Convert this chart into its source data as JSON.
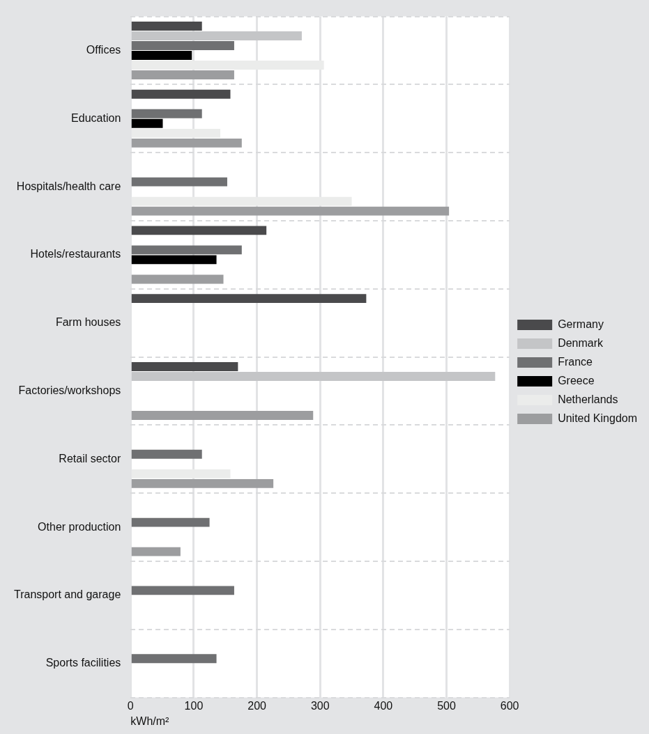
{
  "chart_data": {
    "type": "bar",
    "orientation": "horizontal",
    "xlabel": "kWh/m²",
    "categories": [
      "Offices",
      "Education",
      "Hospitals/health care",
      "Hotels/restaurants",
      "Farm houses",
      "Factories/workshops",
      "Retail sector",
      "Other production",
      "Transport and garage",
      "Sports facilities"
    ],
    "series": [
      {
        "name": "Germany",
        "color": "#4a4a4c",
        "values": [
          113,
          158,
          null,
          215,
          373,
          170,
          null,
          null,
          null,
          null
        ]
      },
      {
        "name": "Denmark",
        "color": "#c4c5c7",
        "values": [
          271,
          null,
          null,
          null,
          null,
          577,
          null,
          null,
          null,
          null
        ]
      },
      {
        "name": "France",
        "color": "#6f7072",
        "values": [
          164,
          113,
          153,
          176,
          null,
          null,
          113,
          125,
          164,
          136
        ]
      },
      {
        "name": "Greece",
        "color": "#000000",
        "values": [
          97,
          51,
          null,
          136,
          null,
          null,
          null,
          null,
          null,
          null
        ]
      },
      {
        "name": "Netherlands",
        "color": "#ebeceb",
        "values": [
          306,
          142,
          350,
          null,
          null,
          null,
          158,
          null,
          null,
          null
        ]
      },
      {
        "name": "United Kingdom",
        "color": "#9c9d9f",
        "values": [
          164,
          176,
          504,
          147,
          null,
          289,
          226,
          79,
          null,
          null
        ]
      }
    ],
    "xlim": [
      0,
      600
    ],
    "xticks": [
      0,
      100,
      200,
      300,
      400,
      500,
      600
    ],
    "grid": true,
    "legend": "right"
  }
}
